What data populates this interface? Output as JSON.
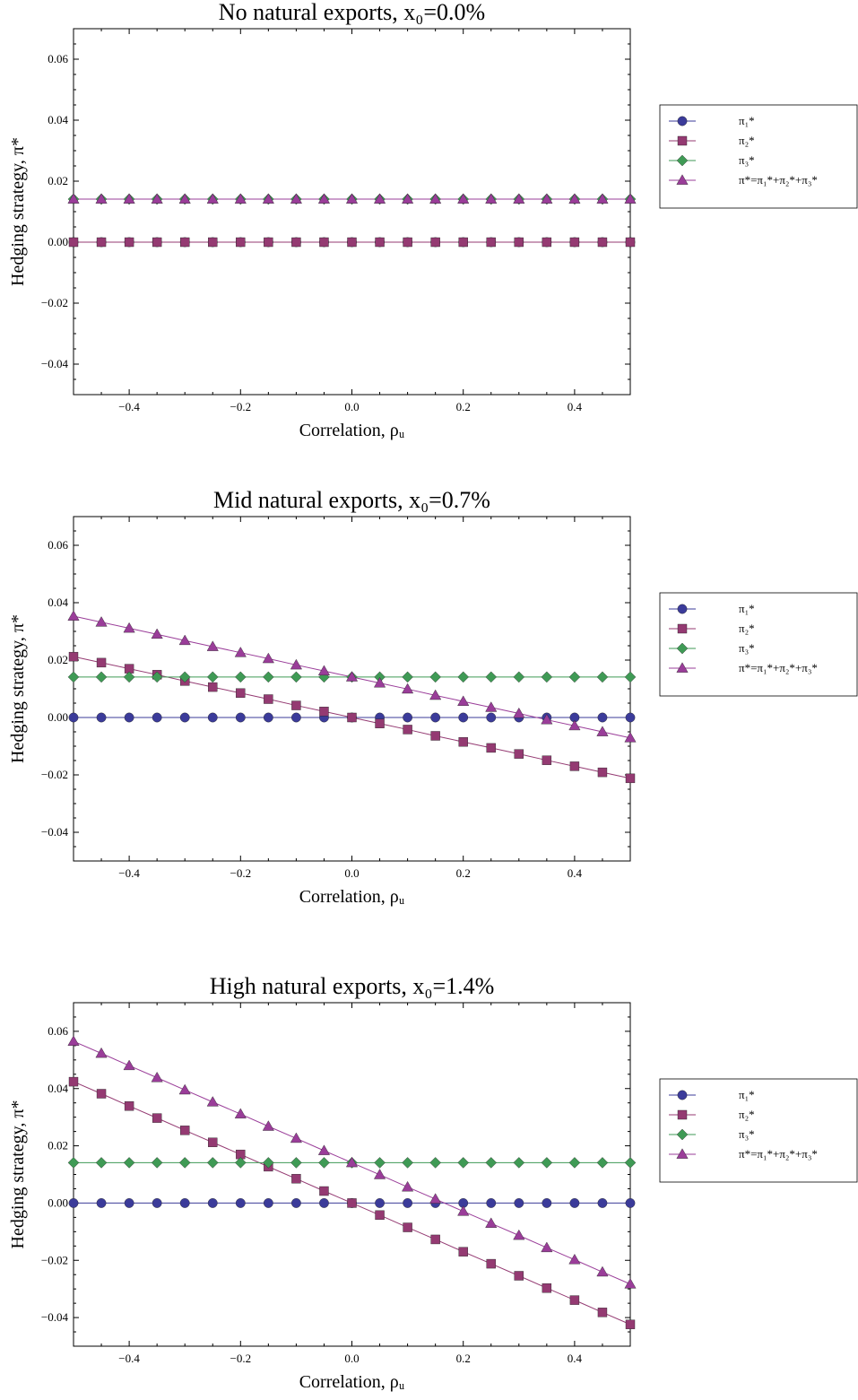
{
  "chart_data": [
    {
      "type": "line",
      "title": "No natural exports, x₀=0.0%",
      "xlabel": "Correlation, ρᵤ",
      "ylabel": "Hedging strategy, π*",
      "xlim": [
        -0.5,
        0.5
      ],
      "ylim": [
        -0.05,
        0.07
      ],
      "xticks": [
        -0.4,
        -0.2,
        0.0,
        0.2,
        0.4
      ],
      "xtick_labels": [
        "−0.4",
        "−0.2",
        "0.0",
        "0.2",
        "0.4"
      ],
      "yticks": [
        -0.04,
        -0.02,
        0.0,
        0.02,
        0.04,
        0.06
      ],
      "ytick_labels": [
        "−0.04",
        "−0.02",
        "0.00",
        "0.02",
        "0.04",
        "0.06"
      ],
      "grid": false,
      "legend_position": "right",
      "x": [
        -0.5,
        -0.45,
        -0.4,
        -0.35,
        -0.3,
        -0.25,
        -0.2,
        -0.15,
        -0.1,
        -0.05,
        0.0,
        0.05,
        0.1,
        0.15,
        0.2,
        0.25,
        0.3,
        0.35,
        0.4,
        0.45,
        0.5
      ],
      "series": [
        {
          "name": "π₁*",
          "marker": "circle",
          "color": "#3b3b9a",
          "values": [
            0,
            0,
            0,
            0,
            0,
            0,
            0,
            0,
            0,
            0,
            0,
            0,
            0,
            0,
            0,
            0,
            0,
            0,
            0,
            0,
            0
          ]
        },
        {
          "name": "π₂*",
          "marker": "square",
          "color": "#943a72",
          "values": [
            0,
            0,
            0,
            0,
            0,
            0,
            0,
            0,
            0,
            0,
            0,
            0,
            0,
            0,
            0,
            0,
            0,
            0,
            0,
            0,
            0
          ]
        },
        {
          "name": "π₃*",
          "marker": "diamond",
          "color": "#3f9a55",
          "values": [
            0.0141,
            0.0141,
            0.0141,
            0.0141,
            0.0141,
            0.0141,
            0.0141,
            0.0141,
            0.0141,
            0.0141,
            0.0141,
            0.0141,
            0.0141,
            0.0141,
            0.0141,
            0.0141,
            0.0141,
            0.0141,
            0.0141,
            0.0141,
            0.0141
          ]
        },
        {
          "name": "π*=π₁*+π₂*+π₃*",
          "marker": "triangle",
          "color": "#9a3d99",
          "values": [
            0.0141,
            0.0141,
            0.0141,
            0.0141,
            0.0141,
            0.0141,
            0.0141,
            0.0141,
            0.0141,
            0.0141,
            0.0141,
            0.0141,
            0.0141,
            0.0141,
            0.0141,
            0.0141,
            0.0141,
            0.0141,
            0.0141,
            0.0141,
            0.0141
          ]
        }
      ]
    },
    {
      "type": "line",
      "title": "Mid natural exports, x₀=0.7%",
      "xlabel": "Correlation, ρᵤ",
      "ylabel": "Hedging strategy, π*",
      "xlim": [
        -0.5,
        0.5
      ],
      "ylim": [
        -0.05,
        0.07
      ],
      "xticks": [
        -0.4,
        -0.2,
        0.0,
        0.2,
        0.4
      ],
      "xtick_labels": [
        "−0.4",
        "−0.2",
        "0.0",
        "0.2",
        "0.4"
      ],
      "yticks": [
        -0.04,
        -0.02,
        0.0,
        0.02,
        0.04,
        0.06
      ],
      "ytick_labels": [
        "−0.04",
        "−0.02",
        "0.00",
        "0.02",
        "0.04",
        "0.06"
      ],
      "grid": false,
      "legend_position": "right",
      "x": [
        -0.5,
        -0.45,
        -0.4,
        -0.35,
        -0.3,
        -0.25,
        -0.2,
        -0.15,
        -0.1,
        -0.05,
        0.0,
        0.05,
        0.1,
        0.15,
        0.2,
        0.25,
        0.3,
        0.35,
        0.4,
        0.45,
        0.5
      ],
      "series": [
        {
          "name": "π₁*",
          "marker": "circle",
          "color": "#3b3b9a",
          "values": [
            0,
            0,
            0,
            0,
            0,
            0,
            0,
            0,
            0,
            0,
            0,
            0,
            0,
            0,
            0,
            0,
            0,
            0,
            0,
            0,
            0
          ]
        },
        {
          "name": "π₂*",
          "marker": "square",
          "color": "#943a72",
          "values": [
            0.0212,
            0.0191,
            0.017,
            0.0149,
            0.0127,
            0.0106,
            0.0085,
            0.0064,
            0.0042,
            0.0021,
            0.0,
            -0.0021,
            -0.0042,
            -0.0064,
            -0.0085,
            -0.0106,
            -0.0127,
            -0.0149,
            -0.017,
            -0.0191,
            -0.0212
          ]
        },
        {
          "name": "π₃*",
          "marker": "diamond",
          "color": "#3f9a55",
          "values": [
            0.0141,
            0.0141,
            0.0141,
            0.0141,
            0.0141,
            0.0141,
            0.0141,
            0.0141,
            0.0141,
            0.0141,
            0.0141,
            0.0141,
            0.0141,
            0.0141,
            0.0141,
            0.0141,
            0.0141,
            0.0141,
            0.0141,
            0.0141,
            0.0141
          ]
        },
        {
          "name": "π*=π₁*+π₂*+π₃*",
          "marker": "triangle",
          "color": "#9a3d99",
          "values": [
            0.0353,
            0.0332,
            0.0311,
            0.029,
            0.0268,
            0.0247,
            0.0226,
            0.0205,
            0.0183,
            0.0162,
            0.0141,
            0.012,
            0.0099,
            0.0077,
            0.0056,
            0.0035,
            0.0014,
            -0.0008,
            -0.0029,
            -0.005,
            -0.0071
          ]
        }
      ]
    },
    {
      "type": "line",
      "title": "High natural exports, x₀=1.4%",
      "xlabel": "Correlation, ρᵤ",
      "ylabel": "Hedging strategy, π*",
      "xlim": [
        -0.5,
        0.5
      ],
      "ylim": [
        -0.05,
        0.07
      ],
      "xticks": [
        -0.4,
        -0.2,
        0.0,
        0.2,
        0.4
      ],
      "xtick_labels": [
        "−0.4",
        "−0.2",
        "0.0",
        "0.2",
        "0.4"
      ],
      "yticks": [
        -0.04,
        -0.02,
        0.0,
        0.02,
        0.04,
        0.06
      ],
      "ytick_labels": [
        "−0.04",
        "−0.02",
        "0.00",
        "0.02",
        "0.04",
        "0.06"
      ],
      "grid": false,
      "legend_position": "right",
      "x": [
        -0.5,
        -0.45,
        -0.4,
        -0.35,
        -0.3,
        -0.25,
        -0.2,
        -0.15,
        -0.1,
        -0.05,
        0.0,
        0.05,
        0.1,
        0.15,
        0.2,
        0.25,
        0.3,
        0.35,
        0.4,
        0.45,
        0.5
      ],
      "series": [
        {
          "name": "π₁*",
          "marker": "circle",
          "color": "#3b3b9a",
          "values": [
            0,
            0,
            0,
            0,
            0,
            0,
            0,
            0,
            0,
            0,
            0,
            0,
            0,
            0,
            0,
            0,
            0,
            0,
            0,
            0,
            0
          ]
        },
        {
          "name": "π₂*",
          "marker": "square",
          "color": "#943a72",
          "values": [
            0.0424,
            0.0382,
            0.0339,
            0.0297,
            0.0254,
            0.0212,
            0.017,
            0.0127,
            0.0085,
            0.0042,
            0.0,
            -0.0042,
            -0.0085,
            -0.0127,
            -0.017,
            -0.0212,
            -0.0254,
            -0.0297,
            -0.0339,
            -0.0382,
            -0.0424
          ]
        },
        {
          "name": "π₃*",
          "marker": "diamond",
          "color": "#3f9a55",
          "values": [
            0.0141,
            0.0141,
            0.0141,
            0.0141,
            0.0141,
            0.0141,
            0.0141,
            0.0141,
            0.0141,
            0.0141,
            0.0141,
            0.0141,
            0.0141,
            0.0141,
            0.0141,
            0.0141,
            0.0141,
            0.0141,
            0.0141,
            0.0141,
            0.0141
          ]
        },
        {
          "name": "π*=π₁*+π₂*+π₃*",
          "marker": "triangle",
          "color": "#9a3d99",
          "values": [
            0.0565,
            0.0523,
            0.048,
            0.0438,
            0.0395,
            0.0353,
            0.0311,
            0.0268,
            0.0226,
            0.0183,
            0.0141,
            0.0099,
            0.0056,
            0.0014,
            -0.0029,
            -0.0071,
            -0.0113,
            -0.0156,
            -0.0198,
            -0.0241,
            -0.0283
          ]
        }
      ]
    }
  ]
}
